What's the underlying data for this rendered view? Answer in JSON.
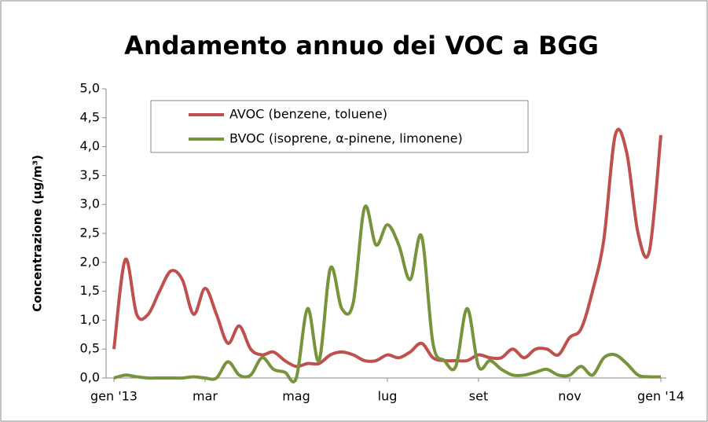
{
  "chart_data": {
    "type": "line",
    "title": "Andamento annuo dei VOC a BGG",
    "y_label": "Concentrazione (µg/m³)",
    "categories": [
      "gen '13",
      null,
      null,
      null,
      null,
      null,
      null,
      null,
      "mar",
      null,
      null,
      null,
      null,
      null,
      null,
      null,
      "mag",
      null,
      null,
      null,
      null,
      null,
      null,
      null,
      "lug",
      null,
      null,
      null,
      null,
      null,
      null,
      null,
      "set",
      null,
      null,
      null,
      null,
      null,
      null,
      null,
      "nov",
      null,
      null,
      null,
      null,
      null,
      null,
      null,
      "gen '14"
    ],
    "series": [
      {
        "name": "AVOC (benzene, toluene)",
        "color": "#c0504d",
        "values": [
          0.5,
          2.05,
          1.1,
          1.1,
          1.5,
          1.85,
          1.7,
          1.1,
          1.55,
          1.1,
          0.6,
          0.9,
          0.5,
          0.4,
          0.45,
          0.3,
          0.2,
          0.25,
          0.25,
          0.4,
          0.45,
          0.4,
          0.3,
          0.3,
          0.4,
          0.35,
          0.45,
          0.6,
          0.35,
          0.3,
          0.3,
          0.3,
          0.4,
          0.35,
          0.35,
          0.5,
          0.35,
          0.5,
          0.5,
          0.4,
          0.7,
          0.85,
          1.5,
          2.4,
          4.2,
          3.9,
          2.5,
          2.2,
          4.2
        ]
      },
      {
        "name": "BVOC (isoprene, α-pinene, limonene)",
        "color": "#77933c",
        "values": [
          0.0,
          0.05,
          0.02,
          0.0,
          0.0,
          0.0,
          0.0,
          0.02,
          0.0,
          0.0,
          0.28,
          0.05,
          0.05,
          0.35,
          0.15,
          0.1,
          0.0,
          1.2,
          0.3,
          1.9,
          1.2,
          1.3,
          2.95,
          2.3,
          2.65,
          2.3,
          1.7,
          2.45,
          0.6,
          0.3,
          0.2,
          1.2,
          0.2,
          0.3,
          0.15,
          0.05,
          0.05,
          0.1,
          0.15,
          0.05,
          0.05,
          0.2,
          0.05,
          0.35,
          0.4,
          0.25,
          0.05,
          0.02,
          0.02
        ]
      }
    ],
    "ylim": [
      0,
      5
    ],
    "yticks": [
      {
        "value": 0,
        "label": "0,0"
      },
      {
        "value": 0.5,
        "label": "0,5"
      },
      {
        "value": 1,
        "label": "1,0"
      },
      {
        "value": 1.5,
        "label": "1,5"
      },
      {
        "value": 2,
        "label": "2,0"
      },
      {
        "value": 2.5,
        "label": "2,5"
      },
      {
        "value": 3,
        "label": "3,0"
      },
      {
        "value": 3.5,
        "label": "3,5"
      },
      {
        "value": 4,
        "label": "4,0"
      },
      {
        "value": 4.5,
        "label": "4,5"
      },
      {
        "value": 5,
        "label": "5,0"
      }
    ],
    "legend": "top-left"
  }
}
